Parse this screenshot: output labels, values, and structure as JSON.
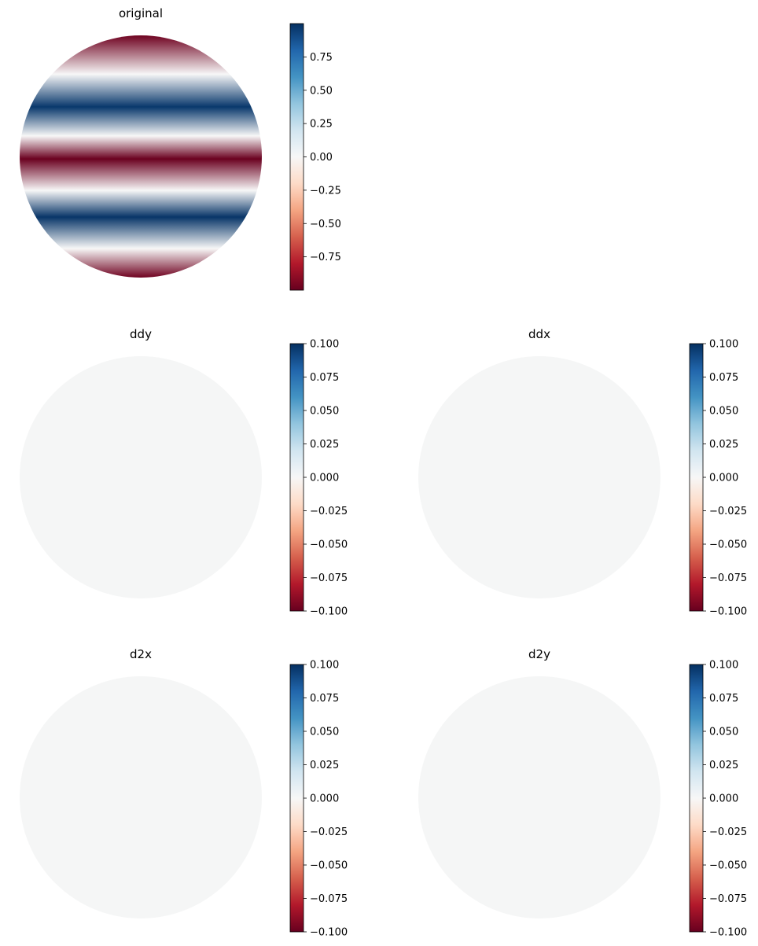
{
  "chart_data": [
    {
      "type": "heatmap",
      "title": "original",
      "shape": "disk",
      "pattern": "horizontal bands",
      "colormap": "RdBu",
      "color_range": [
        -1.0,
        1.0
      ],
      "colorbar_ticks": [
        "0.75",
        "0.50",
        "0.25",
        "0.00",
        "−0.25",
        "−0.50",
        "−0.75"
      ],
      "colorbar_tick_values": [
        0.75,
        0.5,
        0.25,
        0.0,
        -0.25,
        -0.5,
        -0.75
      ],
      "band_profile": [
        {
          "y": 1.0,
          "value": -0.98
        },
        {
          "y": 0.68,
          "value": 0.0
        },
        {
          "y": 0.41,
          "value": 0.97
        },
        {
          "y": 0.17,
          "value": 0.0
        },
        {
          "y": -0.02,
          "value": -0.99
        },
        {
          "y": -0.28,
          "value": 0.0
        },
        {
          "y": -0.5,
          "value": 0.98
        },
        {
          "y": -0.76,
          "value": 0.0
        },
        {
          "y": -1.0,
          "value": -0.98
        }
      ],
      "axes": "off"
    },
    {
      "type": "heatmap",
      "title": "ddy",
      "shape": "disk",
      "colormap": "RdBu",
      "color_range": [
        -0.1,
        0.1
      ],
      "fill_value": 0.0,
      "colorbar_ticks": [
        "0.100",
        "0.075",
        "0.050",
        "0.025",
        "0.000",
        "−0.025",
        "−0.050",
        "−0.075",
        "−0.100"
      ],
      "colorbar_tick_values": [
        0.1,
        0.075,
        0.05,
        0.025,
        0.0,
        -0.025,
        -0.05,
        -0.075,
        -0.1
      ],
      "axes": "off"
    },
    {
      "type": "heatmap",
      "title": "ddx",
      "shape": "disk",
      "colormap": "RdBu",
      "color_range": [
        -0.1,
        0.1
      ],
      "fill_value": 0.0,
      "colorbar_ticks": [
        "0.100",
        "0.075",
        "0.050",
        "0.025",
        "0.000",
        "−0.025",
        "−0.050",
        "−0.075",
        "−0.100"
      ],
      "colorbar_tick_values": [
        0.1,
        0.075,
        0.05,
        0.025,
        0.0,
        -0.025,
        -0.05,
        -0.075,
        -0.1
      ],
      "axes": "off"
    },
    {
      "type": "heatmap",
      "title": "d2x",
      "shape": "disk",
      "colormap": "RdBu",
      "color_range": [
        -0.1,
        0.1
      ],
      "fill_value": 0.0,
      "colorbar_ticks": [
        "0.100",
        "0.075",
        "0.050",
        "0.025",
        "0.000",
        "−0.025",
        "−0.050",
        "−0.075",
        "−0.100"
      ],
      "colorbar_tick_values": [
        0.1,
        0.075,
        0.05,
        0.025,
        0.0,
        -0.025,
        -0.05,
        -0.075,
        -0.1
      ],
      "axes": "off"
    },
    {
      "type": "heatmap",
      "title": "d2y",
      "shape": "disk",
      "colormap": "RdBu",
      "color_range": [
        -0.1,
        0.1
      ],
      "fill_value": 0.0,
      "colorbar_ticks": [
        "0.100",
        "0.075",
        "0.050",
        "0.025",
        "0.000",
        "−0.025",
        "−0.050",
        "−0.075",
        "−0.100"
      ],
      "colorbar_tick_values": [
        0.1,
        0.075,
        0.05,
        0.025,
        0.0,
        -0.025,
        -0.05,
        -0.075,
        -0.1
      ],
      "axes": "off"
    }
  ],
  "colors": {
    "text": "#000000",
    "background": "#ffffff",
    "colormap_stops": [
      "#67001f",
      "#b2182b",
      "#d6604d",
      "#f4a582",
      "#fddbc7",
      "#f7f7f7",
      "#d1e5f0",
      "#92c5de",
      "#4393c3",
      "#2166ac",
      "#053061"
    ],
    "zero_fill": "#f5f6f6"
  }
}
